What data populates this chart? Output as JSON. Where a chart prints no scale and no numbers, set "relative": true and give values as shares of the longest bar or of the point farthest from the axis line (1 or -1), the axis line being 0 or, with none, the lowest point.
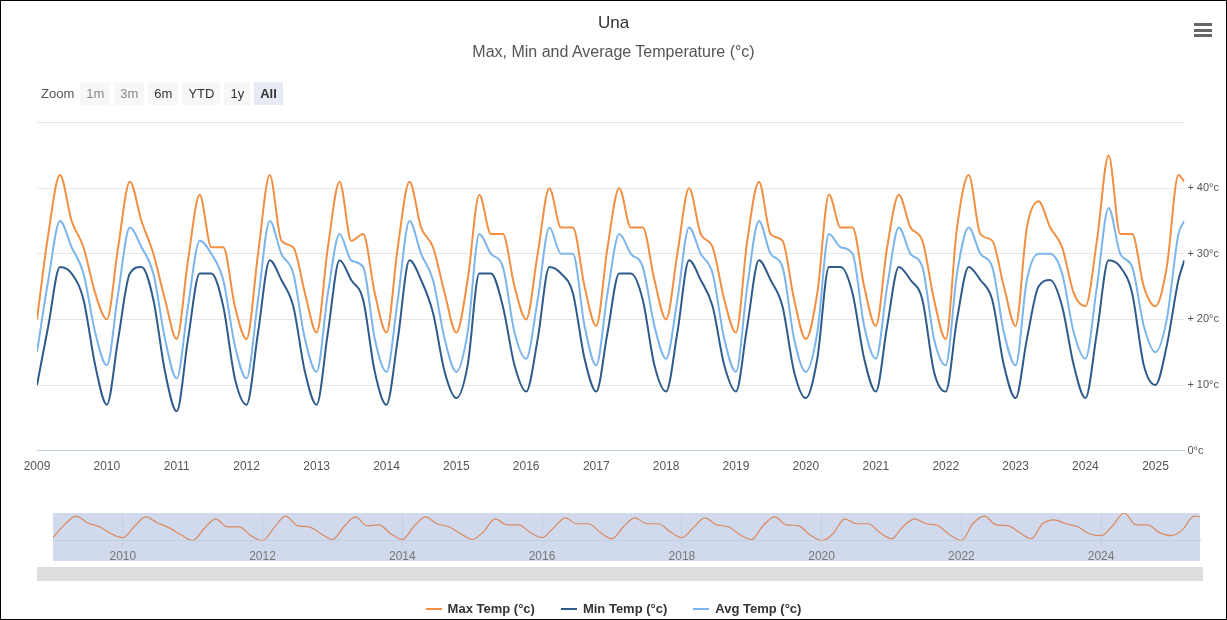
{
  "chart_data": [
    {
      "type": "line",
      "title": "Una",
      "subtitle": "Max, Min and Average Temperature (°c)",
      "annotations": [
        "Zoom",
        "1m",
        "3m",
        "6m",
        "YTD",
        "1y",
        "All"
      ],
      "x": [
        "2009-01",
        "2009-03",
        "2009-05",
        "2009-07",
        "2009-09",
        "2009-11",
        "2010-01",
        "2010-03",
        "2010-05",
        "2010-07",
        "2010-09",
        "2010-11",
        "2011-01",
        "2011-03",
        "2011-05",
        "2011-07",
        "2011-09",
        "2011-11",
        "2012-01",
        "2012-03",
        "2012-05",
        "2012-07",
        "2012-09",
        "2012-11",
        "2013-01",
        "2013-03",
        "2013-05",
        "2013-07",
        "2013-09",
        "2013-11",
        "2014-01",
        "2014-03",
        "2014-05",
        "2014-07",
        "2014-09",
        "2014-11",
        "2015-01",
        "2015-03",
        "2015-05",
        "2015-07",
        "2015-09",
        "2015-11",
        "2016-01",
        "2016-03",
        "2016-05",
        "2016-07",
        "2016-09",
        "2016-11",
        "2017-01",
        "2017-03",
        "2017-05",
        "2017-07",
        "2017-09",
        "2017-11",
        "2018-01",
        "2018-03",
        "2018-05",
        "2018-07",
        "2018-09",
        "2018-11",
        "2019-01",
        "2019-03",
        "2019-05",
        "2019-07",
        "2019-09",
        "2019-11",
        "2020-01",
        "2020-03",
        "2020-05",
        "2020-07",
        "2020-09",
        "2020-11",
        "2021-01",
        "2021-03",
        "2021-05",
        "2021-07",
        "2021-09",
        "2021-11",
        "2022-01",
        "2022-03",
        "2022-05",
        "2022-07",
        "2022-09",
        "2022-11",
        "2023-01",
        "2023-03",
        "2023-05",
        "2023-07",
        "2023-09",
        "2023-11",
        "2024-01",
        "2024-03",
        "2024-05",
        "2024-07",
        "2024-09",
        "2024-11",
        "2025-01",
        "2025-03",
        "2025-05",
        "2025-06"
      ],
      "series": [
        {
          "name": "Max Temp (°c)",
          "color": "#f28f43",
          "values": [
            20,
            33,
            42,
            35,
            31,
            24,
            20,
            31,
            41,
            35,
            30,
            23,
            17,
            29,
            39,
            31,
            31,
            22,
            17,
            30,
            42,
            32,
            31,
            24,
            18,
            31,
            41,
            32,
            33,
            24,
            18,
            31,
            41,
            34,
            31,
            24,
            18,
            26,
            39,
            33,
            33,
            25,
            20,
            30,
            40,
            34,
            34,
            25,
            19,
            31,
            40,
            34,
            34,
            26,
            20,
            30,
            40,
            33,
            31,
            23,
            18,
            32,
            41,
            33,
            32,
            23,
            17,
            24,
            39,
            34,
            34,
            25,
            19,
            31,
            39,
            34,
            32,
            23,
            17,
            34,
            42,
            33,
            32,
            25,
            19,
            34,
            38,
            34,
            31,
            24,
            22,
            32,
            45,
            33,
            33,
            25,
            22,
            28,
            42,
            41
          ]
        },
        {
          "name": "Min Temp (°c)",
          "color": "#2f5b8a",
          "values": [
            10,
            19,
            28,
            27,
            23,
            13,
            7,
            17,
            27,
            28,
            23,
            12,
            6,
            17,
            27,
            27,
            22,
            11,
            7,
            18,
            29,
            26,
            22,
            12,
            7,
            18,
            29,
            26,
            23,
            12,
            7,
            17,
            29,
            26,
            21,
            12,
            8,
            13,
            27,
            27,
            22,
            13,
            9,
            17,
            28,
            27,
            24,
            14,
            9,
            18,
            27,
            27,
            23,
            13,
            9,
            18,
            29,
            26,
            22,
            13,
            9,
            19,
            29,
            26,
            22,
            12,
            8,
            14,
            28,
            28,
            24,
            14,
            9,
            19,
            28,
            26,
            23,
            12,
            9,
            20,
            28,
            26,
            23,
            13,
            8,
            17,
            25,
            26,
            22,
            13,
            8,
            18,
            29,
            28,
            24,
            13,
            10,
            16,
            26,
            29
          ]
        },
        {
          "name": "Avg Temp (°c)",
          "color": "#7cb5ec",
          "values": [
            15,
            26,
            35,
            31,
            27,
            18,
            13,
            24,
            34,
            31,
            27,
            17,
            11,
            22,
            32,
            30,
            26,
            16,
            11,
            23,
            35,
            30,
            27,
            17,
            12,
            24,
            33,
            29,
            28,
            17,
            12,
            23,
            35,
            30,
            26,
            17,
            12,
            18,
            33,
            30,
            28,
            18,
            14,
            23,
            34,
            30,
            30,
            19,
            13,
            24,
            33,
            30,
            28,
            19,
            14,
            23,
            34,
            30,
            27,
            17,
            12,
            25,
            35,
            30,
            28,
            17,
            12,
            18,
            33,
            31,
            30,
            19,
            14,
            25,
            34,
            30,
            28,
            17,
            13,
            27,
            34,
            30,
            28,
            18,
            13,
            26,
            30,
            30,
            27,
            18,
            14,
            25,
            37,
            30,
            28,
            19,
            15,
            20,
            33,
            35
          ]
        }
      ],
      "xlim": [
        "2009-01",
        "2025-06"
      ],
      "xticks": [
        "2009",
        "2010",
        "2011",
        "2012",
        "2013",
        "2014",
        "2015",
        "2016",
        "2017",
        "2018",
        "2019",
        "2020",
        "2021",
        "2022",
        "2023",
        "2024",
        "2025"
      ],
      "ylim": [
        0,
        50
      ],
      "yticks": [
        {
          "value": 0,
          "label": "0°c"
        },
        {
          "value": 10,
          "label": "+ 10°c"
        },
        {
          "value": 20,
          "label": "+ 20°c"
        },
        {
          "value": 30,
          "label": "+ 30°c"
        },
        {
          "value": 40,
          "label": "+ 40°c"
        },
        {
          "value": 50,
          "label": null
        }
      ],
      "grid": "y",
      "legend": "bottom",
      "marker": "none"
    },
    {
      "type": "line",
      "x": [
        "2009-01",
        "2009-03",
        "2009-05",
        "2009-07",
        "2009-09",
        "2009-11",
        "2010-01",
        "2010-03",
        "2010-05",
        "2010-07",
        "2010-09",
        "2010-11",
        "2011-01",
        "2011-03",
        "2011-05",
        "2011-07",
        "2011-09",
        "2011-11",
        "2012-01",
        "2012-03",
        "2012-05",
        "2012-07",
        "2012-09",
        "2012-11",
        "2013-01",
        "2013-03",
        "2013-05",
        "2013-07",
        "2013-09",
        "2013-11",
        "2014-01",
        "2014-03",
        "2014-05",
        "2014-07",
        "2014-09",
        "2014-11",
        "2015-01",
        "2015-03",
        "2015-05",
        "2015-07",
        "2015-09",
        "2015-11",
        "2016-01",
        "2016-03",
        "2016-05",
        "2016-07",
        "2016-09",
        "2016-11",
        "2017-01",
        "2017-03",
        "2017-05",
        "2017-07",
        "2017-09",
        "2017-11",
        "2018-01",
        "2018-03",
        "2018-05",
        "2018-07",
        "2018-09",
        "2018-11",
        "2019-01",
        "2019-03",
        "2019-05",
        "2019-07",
        "2019-09",
        "2019-11",
        "2020-01",
        "2020-03",
        "2020-05",
        "2020-07",
        "2020-09",
        "2020-11",
        "2021-01",
        "2021-03",
        "2021-05",
        "2021-07",
        "2021-09",
        "2021-11",
        "2022-01",
        "2022-03",
        "2022-05",
        "2022-07",
        "2022-09",
        "2022-11",
        "2023-01",
        "2023-03",
        "2023-05",
        "2023-07",
        "2023-09",
        "2023-11",
        "2024-01",
        "2024-03",
        "2024-05",
        "2024-07",
        "2024-09",
        "2024-11",
        "2025-01",
        "2025-03",
        "2025-05",
        "2025-06"
      ],
      "series": [
        {
          "color": "#d9895f",
          "values": [
            0.11,
            0.57,
            0.89,
            0.64,
            0.5,
            0.25,
            0.11,
            0.5,
            0.86,
            0.64,
            0.46,
            0.21,
            0,
            0.43,
            0.79,
            0.5,
            0.5,
            0.18,
            0,
            0.46,
            0.89,
            0.54,
            0.5,
            0.25,
            0.04,
            0.5,
            0.86,
            0.54,
            0.57,
            0.25,
            0.04,
            0.5,
            0.86,
            0.61,
            0.5,
            0.25,
            0.04,
            0.32,
            0.79,
            0.57,
            0.57,
            0.29,
            0.11,
            0.46,
            0.82,
            0.61,
            0.61,
            0.29,
            0.07,
            0.5,
            0.82,
            0.61,
            0.61,
            0.32,
            0.11,
            0.46,
            0.82,
            0.57,
            0.5,
            0.21,
            0.04,
            0.54,
            0.86,
            0.57,
            0.54,
            0.21,
            0,
            0.25,
            0.79,
            0.61,
            0.61,
            0.29,
            0.07,
            0.5,
            0.79,
            0.61,
            0.54,
            0.21,
            0,
            0.61,
            0.89,
            0.57,
            0.54,
            0.29,
            0.07,
            0.61,
            0.75,
            0.61,
            0.5,
            0.25,
            0.18,
            0.54,
            1,
            0.57,
            0.57,
            0.29,
            0.18,
            0.39,
            0.89,
            0.86
          ]
        }
      ],
      "xlim": [
        "2009-01",
        "2025-06"
      ],
      "xticks": [
        "2010",
        "2012",
        "2014",
        "2016",
        "2018",
        "2020",
        "2022",
        "2024"
      ],
      "relative": true,
      "tick_labels": "x",
      "grid": "x",
      "marker": "none"
    }
  ]
}
